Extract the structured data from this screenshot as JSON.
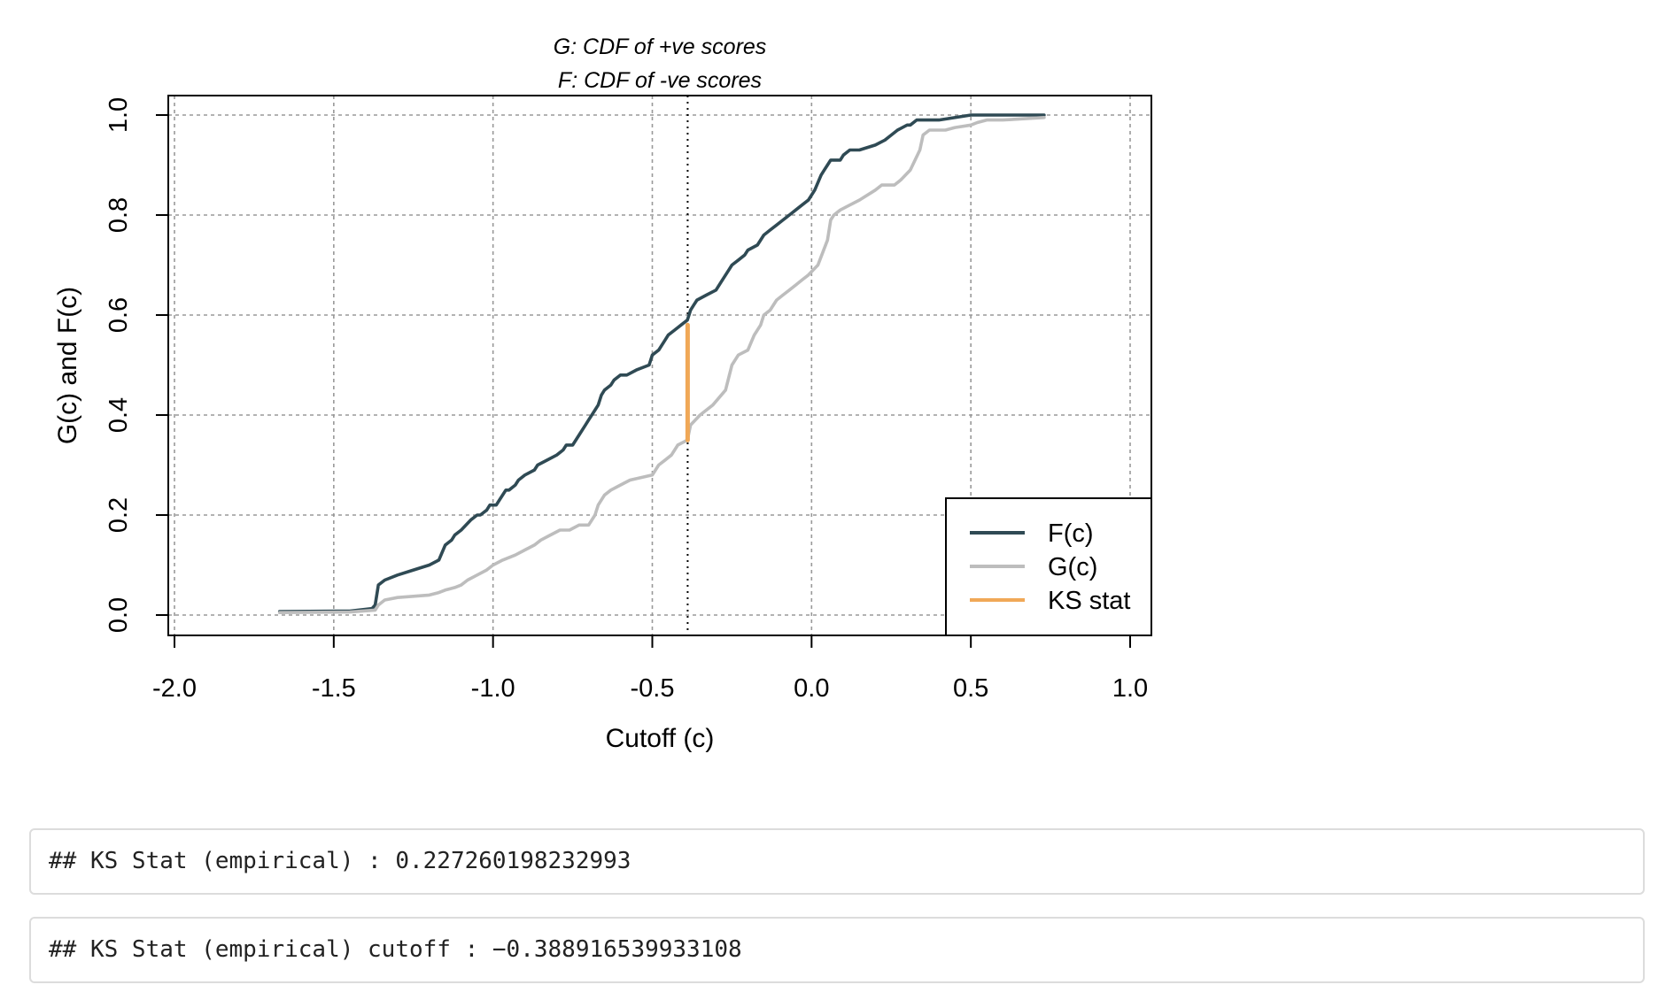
{
  "chart_data": {
    "type": "line",
    "title_lines": [
      "G: CDF of +ve scores",
      "F: CDF of -ve scores"
    ],
    "xlabel": "Cutoff (c)",
    "ylabel": "G(c) and F(c)",
    "xlim": [
      -2.0,
      1.0
    ],
    "ylim": [
      0.0,
      1.0
    ],
    "xticks": [
      "-2.0",
      "-1.5",
      "-1.0",
      "-0.5",
      "0.0",
      "0.5",
      "1.0"
    ],
    "yticks": [
      "0.0",
      "0.2",
      "0.4",
      "0.6",
      "0.8",
      "1.0"
    ],
    "grid": true,
    "legend_position": "bottom-right",
    "cutoff_line_x": -0.389,
    "ks_segment": {
      "x": -0.389,
      "y_from": 0.35,
      "y_to": 0.58
    },
    "series": [
      {
        "name": "F(c)",
        "color": "#2f4a54",
        "x": [
          -1.67,
          -1.45,
          -1.38,
          -1.37,
          -1.36,
          -1.34,
          -1.3,
          -1.25,
          -1.2,
          -1.17,
          -1.15,
          -1.13,
          -1.12,
          -1.1,
          -1.07,
          -1.05,
          -1.04,
          -1.02,
          -1.01,
          -0.99,
          -0.98,
          -0.96,
          -0.95,
          -0.93,
          -0.92,
          -0.9,
          -0.87,
          -0.86,
          -0.83,
          -0.8,
          -0.78,
          -0.77,
          -0.75,
          -0.73,
          -0.71,
          -0.7,
          -0.68,
          -0.67,
          -0.66,
          -0.65,
          -0.63,
          -0.62,
          -0.6,
          -0.58,
          -0.55,
          -0.51,
          -0.5,
          -0.48,
          -0.46,
          -0.45,
          -0.43,
          -0.41,
          -0.39,
          -0.38,
          -0.37,
          -0.36,
          -0.33,
          -0.3,
          -0.28,
          -0.26,
          -0.25,
          -0.23,
          -0.21,
          -0.2,
          -0.17,
          -0.15,
          -0.13,
          -0.11,
          -0.09,
          -0.07,
          -0.05,
          -0.03,
          -0.01,
          0.01,
          0.03,
          0.04,
          0.05,
          0.06,
          0.09,
          0.1,
          0.12,
          0.15,
          0.2,
          0.23,
          0.25,
          0.27,
          0.3,
          0.31,
          0.33,
          0.34,
          0.4,
          0.5,
          0.55,
          0.73
        ],
        "y": [
          0.007,
          0.008,
          0.013,
          0.02,
          0.06,
          0.07,
          0.08,
          0.09,
          0.1,
          0.11,
          0.14,
          0.15,
          0.16,
          0.17,
          0.19,
          0.2,
          0.2,
          0.21,
          0.22,
          0.22,
          0.23,
          0.25,
          0.25,
          0.26,
          0.27,
          0.28,
          0.29,
          0.3,
          0.31,
          0.32,
          0.33,
          0.34,
          0.34,
          0.36,
          0.38,
          0.39,
          0.41,
          0.42,
          0.44,
          0.45,
          0.46,
          0.47,
          0.48,
          0.48,
          0.49,
          0.5,
          0.52,
          0.53,
          0.55,
          0.56,
          0.57,
          0.58,
          0.59,
          0.61,
          0.62,
          0.63,
          0.64,
          0.65,
          0.67,
          0.69,
          0.7,
          0.71,
          0.72,
          0.73,
          0.74,
          0.76,
          0.77,
          0.78,
          0.79,
          0.8,
          0.81,
          0.82,
          0.83,
          0.85,
          0.88,
          0.89,
          0.9,
          0.91,
          0.91,
          0.92,
          0.93,
          0.93,
          0.94,
          0.95,
          0.96,
          0.97,
          0.98,
          0.98,
          0.99,
          0.99,
          0.99,
          1.0,
          1.0,
          1.0
        ]
      },
      {
        "name": "G(c)",
        "color": "#bdbdbd",
        "x": [
          -1.67,
          -1.45,
          -1.37,
          -1.36,
          -1.34,
          -1.3,
          -1.2,
          -1.17,
          -1.15,
          -1.12,
          -1.1,
          -1.08,
          -1.05,
          -1.02,
          -1.0,
          -0.97,
          -0.93,
          -0.9,
          -0.87,
          -0.85,
          -0.82,
          -0.79,
          -0.76,
          -0.73,
          -0.7,
          -0.68,
          -0.67,
          -0.65,
          -0.63,
          -0.6,
          -0.57,
          -0.5,
          -0.48,
          -0.46,
          -0.44,
          -0.42,
          -0.39,
          -0.38,
          -0.35,
          -0.31,
          -0.27,
          -0.25,
          -0.23,
          -0.2,
          -0.18,
          -0.16,
          -0.15,
          -0.13,
          -0.11,
          -0.09,
          -0.07,
          -0.05,
          -0.03,
          -0.01,
          0.02,
          0.05,
          0.06,
          0.07,
          0.09,
          0.12,
          0.15,
          0.2,
          0.22,
          0.26,
          0.28,
          0.31,
          0.34,
          0.35,
          0.37,
          0.42,
          0.45,
          0.5,
          0.52,
          0.55,
          0.6,
          0.73
        ],
        "y": [
          0.005,
          0.006,
          0.01,
          0.02,
          0.03,
          0.035,
          0.04,
          0.045,
          0.05,
          0.055,
          0.06,
          0.07,
          0.08,
          0.09,
          0.1,
          0.11,
          0.12,
          0.13,
          0.14,
          0.15,
          0.16,
          0.17,
          0.17,
          0.18,
          0.18,
          0.2,
          0.22,
          0.24,
          0.25,
          0.26,
          0.27,
          0.28,
          0.3,
          0.31,
          0.32,
          0.34,
          0.35,
          0.38,
          0.4,
          0.42,
          0.45,
          0.5,
          0.52,
          0.53,
          0.56,
          0.58,
          0.6,
          0.61,
          0.63,
          0.64,
          0.65,
          0.66,
          0.67,
          0.68,
          0.7,
          0.75,
          0.79,
          0.8,
          0.81,
          0.82,
          0.83,
          0.85,
          0.86,
          0.86,
          0.87,
          0.89,
          0.93,
          0.96,
          0.97,
          0.97,
          0.975,
          0.98,
          0.985,
          0.99,
          0.99,
          0.995
        ]
      },
      {
        "name": "KS stat",
        "color": "#f0a857",
        "x": [
          -0.389,
          -0.389
        ],
        "y": [
          0.35,
          0.58
        ]
      }
    ]
  },
  "outputs": [
    "## KS Stat (empirical) : 0.227260198232993",
    "## KS Stat (empirical) cutoff : −0.388916539933108"
  ]
}
